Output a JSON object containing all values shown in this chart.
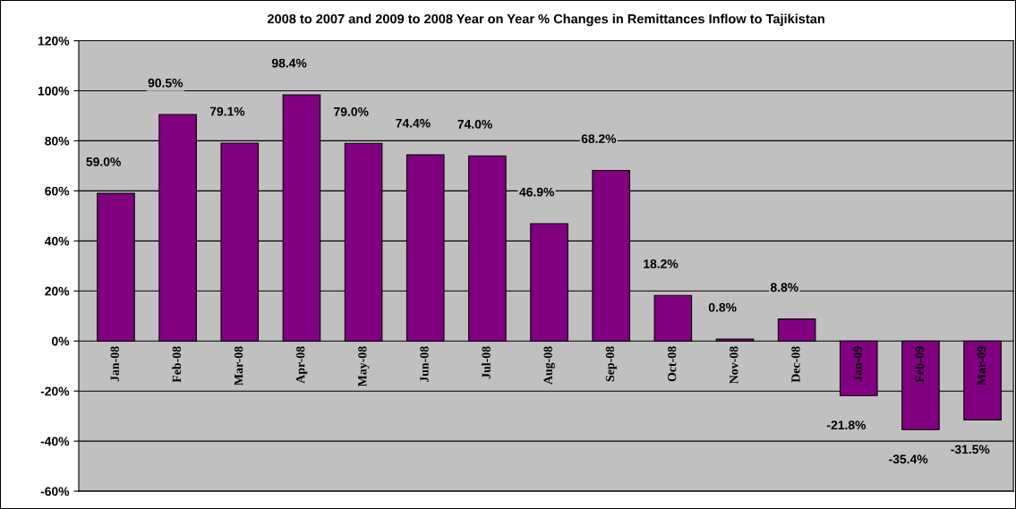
{
  "chart_data": {
    "type": "bar",
    "title": "2008 to 2007 and 2009 to 2008 Year on Year % Changes in Remittances Inflow to Tajikistan",
    "categories": [
      "Jan-08",
      "Feb-08",
      "Mar-08",
      "Apr-08",
      "May-08",
      "Jun-08",
      "Jul-08",
      "Aug-08",
      "Sep-08",
      "Oct-08",
      "Nov-08",
      "Dec-08",
      "Jan-09",
      "Feb-09",
      "Mar-09"
    ],
    "values": [
      59.0,
      90.5,
      79.1,
      98.4,
      79.0,
      74.4,
      74.0,
      46.9,
      68.2,
      18.2,
      0.8,
      8.8,
      -21.8,
      -35.4,
      -31.5
    ],
    "value_labels": [
      "59.0%",
      "90.5%",
      "79.1%",
      "98.4%",
      "79.0%",
      "74.4%",
      "74.0%",
      "46.9%",
      "68.2%",
      "18.2%",
      "0.8%",
      "8.8%",
      "-21.8%",
      "-35.4%",
      "-31.5%"
    ],
    "color": "#800080",
    "ylim": [
      -60,
      120
    ],
    "yticks": [
      {
        "value": -60,
        "label": "-60%"
      },
      {
        "value": -40,
        "label": "-40%"
      },
      {
        "value": -20,
        "label": "-20%"
      },
      {
        "value": 0,
        "label": "0%"
      },
      {
        "value": 20,
        "label": "20%"
      },
      {
        "value": 40,
        "label": "40%"
      },
      {
        "value": 60,
        "label": "60%"
      },
      {
        "value": 80,
        "label": "80%"
      },
      {
        "value": 100,
        "label": "100%"
      },
      {
        "value": 120,
        "label": "120%"
      }
    ],
    "grid": "y"
  }
}
